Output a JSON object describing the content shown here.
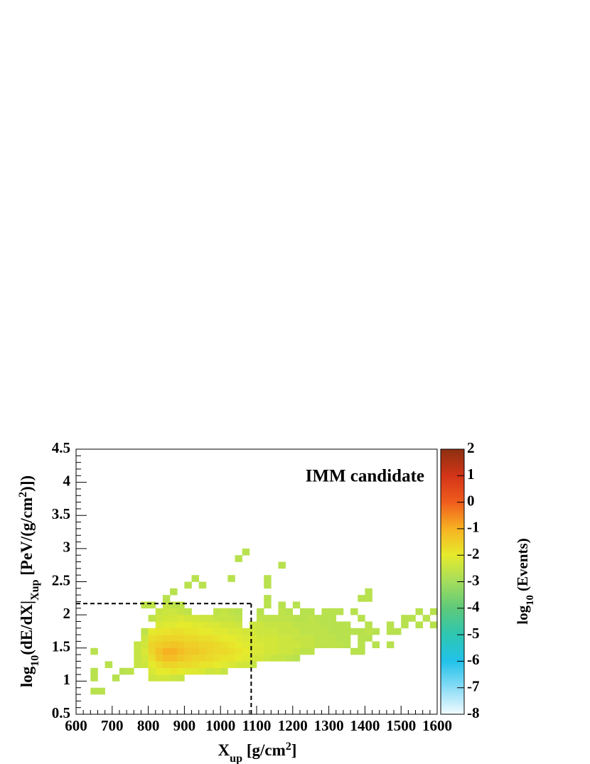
{
  "chart_data": {
    "type": "heatmap",
    "annotation": "IMM candidate",
    "xlabel": [
      {
        "text": "X"
      },
      {
        "text": "up",
        "shift": "sub"
      },
      {
        "text": " [g/cm"
      },
      {
        "text": "2",
        "shift": "super"
      },
      {
        "text": "]"
      }
    ],
    "ylabel": [
      {
        "text": "log"
      },
      {
        "text": "10",
        "shift": "sub"
      },
      {
        "text": "(dE/dX|"
      },
      {
        "text": "Xup",
        "shift": "sub"
      },
      {
        "text": " [PeV/(g/cm"
      },
      {
        "text": "2",
        "shift": "super"
      },
      {
        "text": ")])"
      }
    ],
    "zlabel": [
      {
        "text": "log"
      },
      {
        "text": "10",
        "shift": "sub"
      },
      {
        "text": " (Events)"
      }
    ],
    "xlim": [
      600,
      1600
    ],
    "xticks": [
      600,
      700,
      800,
      900,
      1000,
      1100,
      1200,
      1300,
      1400,
      1500,
      1600
    ],
    "ylim": [
      0.5,
      4.5
    ],
    "yticks": [
      0.5,
      1,
      1.5,
      2,
      2.5,
      3,
      3.5,
      4,
      4.5
    ],
    "zlim": [
      -8,
      2
    ],
    "zticks": [
      -8,
      -7,
      -6,
      -5,
      -4,
      -3,
      -2,
      -1,
      0,
      1,
      2
    ],
    "palette": [
      "#f2fbff",
      "#8adcf6",
      "#22c2ea",
      "#2ec6b2",
      "#5ec97a",
      "#a4dd5c",
      "#e6ea2c",
      "#f7b222",
      "#f05c1c",
      "#d33418",
      "#8c3010"
    ],
    "bin_width": [
      20,
      0.1
    ],
    "rows": [
      {
        "y": 0.8,
        "x": [
          640,
          660
        ],
        "z": [
          -2.7,
          -2.7
        ]
      },
      {
        "y": 1.0,
        "x": [
          640,
          700,
          800,
          820,
          840,
          860,
          880
        ],
        "z": [
          -2.7,
          -2.7,
          -2.4,
          -2.3,
          -2.3,
          -2.4,
          -2.5
        ]
      },
      {
        "y": 1.1,
        "x": [
          640,
          720,
          740,
          800,
          820,
          840,
          860,
          880,
          900,
          920,
          940,
          960,
          980,
          1000
        ],
        "z": [
          -2.7,
          -2.7,
          -2.6,
          -2.2,
          -2.0,
          -2.0,
          -1.9,
          -2.0,
          -2.1,
          -2.1,
          -2.2,
          -2.4,
          -2.3,
          -2.5
        ]
      },
      {
        "y": 1.2,
        "x": [
          680,
          760,
          780,
          800,
          820,
          840,
          860,
          880,
          900,
          920,
          940,
          960,
          980,
          1000,
          1020,
          1040,
          1060,
          1080
        ],
        "z": [
          -2.7,
          -2.5,
          -2.4,
          -2.0,
          -1.8,
          -1.6,
          -1.6,
          -1.7,
          -1.7,
          -1.8,
          -1.9,
          -1.9,
          -2.0,
          -2.1,
          -2.2,
          -2.3,
          -2.3,
          -2.5
        ]
      },
      {
        "y": 1.3,
        "x": [
          760,
          780,
          800,
          820,
          840,
          860,
          880,
          900,
          920,
          940,
          960,
          980,
          1000,
          1020,
          1040,
          1060,
          1080,
          1100,
          1120,
          1140,
          1160,
          1180,
          1200
        ],
        "z": [
          -2.5,
          -2.3,
          -1.8,
          -1.4,
          -1.2,
          -1.2,
          -1.4,
          -1.5,
          -1.6,
          -1.6,
          -1.7,
          -1.8,
          -1.9,
          -1.9,
          -2.0,
          -2.1,
          -2.3,
          -2.3,
          -2.4,
          -2.5,
          -2.5,
          -2.6,
          -2.7
        ]
      },
      {
        "y": 1.4,
        "x": [
          640,
          760,
          780,
          800,
          820,
          840,
          860,
          880,
          900,
          920,
          940,
          960,
          980,
          1000,
          1020,
          1040,
          1060,
          1080,
          1100,
          1120,
          1140,
          1160,
          1180,
          1200,
          1220,
          1240,
          1360,
          1380
        ],
        "z": [
          -2.7,
          -2.5,
          -2.2,
          -1.6,
          -1.3,
          -1.0,
          -1.0,
          -1.2,
          -1.4,
          -1.4,
          -1.5,
          -1.6,
          -1.7,
          -1.7,
          -1.8,
          -1.9,
          -2.0,
          -2.2,
          -2.2,
          -2.3,
          -2.3,
          -2.4,
          -2.4,
          -2.5,
          -2.6,
          -2.6,
          -2.7,
          -2.7
        ]
      },
      {
        "y": 1.5,
        "x": [
          760,
          780,
          800,
          820,
          840,
          860,
          880,
          900,
          920,
          940,
          960,
          980,
          1000,
          1020,
          1040,
          1060,
          1080,
          1100,
          1120,
          1140,
          1160,
          1180,
          1200,
          1220,
          1240,
          1260,
          1280,
          1300,
          1320,
          1340,
          1380,
          1420,
          1460
        ],
        "z": [
          -2.5,
          -2.3,
          -1.6,
          -1.5,
          -1.4,
          -1.3,
          -1.4,
          -1.5,
          -1.5,
          -1.6,
          -1.6,
          -1.7,
          -1.8,
          -1.9,
          -2.0,
          -2.1,
          -2.2,
          -2.2,
          -2.3,
          -2.3,
          -2.4,
          -2.4,
          -2.4,
          -2.5,
          -2.5,
          -2.6,
          -2.6,
          -2.6,
          -2.6,
          -2.7,
          -2.7,
          -2.7,
          -2.7
        ]
      },
      {
        "y": 1.6,
        "x": [
          780,
          800,
          820,
          840,
          860,
          880,
          900,
          920,
          940,
          960,
          980,
          1000,
          1020,
          1040,
          1060,
          1080,
          1100,
          1120,
          1140,
          1160,
          1180,
          1200,
          1220,
          1240,
          1260,
          1280,
          1300,
          1320,
          1340,
          1380,
          1400
        ],
        "z": [
          -2.4,
          -1.8,
          -1.7,
          -1.6,
          -1.6,
          -1.6,
          -1.7,
          -1.7,
          -1.8,
          -1.8,
          -1.9,
          -2.0,
          -2.0,
          -2.1,
          -2.2,
          -2.2,
          -2.3,
          -2.3,
          -2.3,
          -2.4,
          -2.4,
          -2.5,
          -2.5,
          -2.5,
          -2.6,
          -2.6,
          -2.6,
          -2.7,
          -2.7,
          -2.7,
          -2.7
        ]
      },
      {
        "y": 1.7,
        "x": [
          780,
          800,
          820,
          840,
          860,
          880,
          900,
          920,
          940,
          960,
          980,
          1000,
          1020,
          1040,
          1060,
          1080,
          1100,
          1120,
          1140,
          1160,
          1180,
          1200,
          1220,
          1240,
          1260,
          1280,
          1300,
          1320,
          1340,
          1360,
          1380,
          1400,
          1420,
          1460,
          1480
        ],
        "z": [
          -2.6,
          -2.0,
          -1.9,
          -1.9,
          -1.8,
          -1.8,
          -1.9,
          -1.9,
          -2.0,
          -2.0,
          -2.1,
          -2.1,
          -2.2,
          -2.2,
          -2.3,
          -2.3,
          -2.4,
          -2.4,
          -2.4,
          -2.5,
          -2.5,
          -2.5,
          -2.6,
          -2.6,
          -2.6,
          -2.6,
          -2.7,
          -2.7,
          -2.7,
          -2.7,
          -2.7,
          -2.6,
          -2.7,
          -2.7,
          -2.7
        ]
      },
      {
        "y": 1.8,
        "x": [
          820,
          840,
          860,
          880,
          900,
          920,
          940,
          960,
          980,
          1000,
          1020,
          1040,
          1080,
          1100,
          1120,
          1140,
          1160,
          1180,
          1200,
          1220,
          1240,
          1260,
          1280,
          1300,
          1320,
          1340,
          1400,
          1460,
          1500,
          1540,
          1580
        ],
        "z": [
          -2.2,
          -2.1,
          -2.1,
          -2.0,
          -2.0,
          -2.1,
          -2.1,
          -2.2,
          -2.2,
          -2.3,
          -2.3,
          -2.4,
          -2.4,
          -2.4,
          -2.5,
          -2.5,
          -2.5,
          -2.5,
          -2.6,
          -2.6,
          -2.6,
          -2.6,
          -2.7,
          -2.7,
          -2.7,
          -2.7,
          -2.7,
          -2.7,
          -2.7,
          -2.7,
          -2.7
        ]
      },
      {
        "y": 1.9,
        "x": [
          800,
          820,
          840,
          860,
          880,
          900,
          920,
          940,
          960,
          980,
          1000,
          1020,
          1040,
          1100,
          1120,
          1140,
          1160,
          1180,
          1200,
          1220,
          1240,
          1260,
          1280,
          1300,
          1380,
          1500,
          1520,
          1560
        ],
        "z": [
          -2.6,
          -2.4,
          -2.3,
          -2.3,
          -2.2,
          -2.3,
          -2.3,
          -2.4,
          -2.4,
          -2.5,
          -2.5,
          -2.5,
          -2.6,
          -2.6,
          -2.6,
          -2.6,
          -2.6,
          -2.6,
          -2.7,
          -2.7,
          -2.6,
          -2.7,
          -2.7,
          -2.7,
          -2.7,
          -2.7,
          -2.7,
          -2.7
        ]
      },
      {
        "y": 2.0,
        "x": [
          820,
          840,
          860,
          880,
          900,
          980,
          1000,
          1020,
          1040,
          1100,
          1160,
          1180,
          1220,
          1240,
          1280,
          1300,
          1320,
          1360,
          1540,
          1580
        ],
        "z": [
          -2.5,
          -2.4,
          -2.4,
          -2.5,
          -2.6,
          -2.6,
          -2.5,
          -2.6,
          -2.7,
          -2.7,
          -2.6,
          -2.7,
          -2.7,
          -2.7,
          -2.7,
          -2.7,
          -2.7,
          -2.7,
          -2.7,
          -2.7
        ]
      },
      {
        "y": 2.1,
        "x": [
          780,
          800,
          840,
          860,
          880,
          1120,
          1160,
          1200
        ],
        "z": [
          -2.6,
          -2.6,
          -2.5,
          -2.6,
          -2.6,
          -2.7,
          -2.7,
          -2.7
        ]
      },
      {
        "y": 2.2,
        "x": [
          840,
          1120,
          1380,
          1400
        ],
        "z": [
          -2.7,
          -2.7,
          -2.7,
          -2.7
        ]
      },
      {
        "y": 2.3,
        "x": [
          860,
          1400
        ],
        "z": [
          -2.7,
          -2.7
        ]
      },
      {
        "y": 2.4,
        "x": [
          900,
          940,
          1120
        ],
        "z": [
          -2.7,
          -2.7,
          -2.7
        ]
      },
      {
        "y": 2.5,
        "x": [
          920,
          1020,
          1120
        ],
        "z": [
          -2.7,
          -2.7,
          -2.7
        ]
      },
      {
        "y": 2.7,
        "x": [
          1160
        ],
        "z": [
          -2.7
        ]
      },
      {
        "y": 2.8,
        "x": [
          1040
        ],
        "z": [
          -2.7
        ]
      },
      {
        "y": 2.9,
        "x": [
          1060
        ],
        "z": [
          -2.7
        ]
      }
    ],
    "lines": [
      {
        "x": [
          600,
          1085
        ],
        "y": [
          2.17,
          2.17
        ]
      },
      {
        "x": [
          1085,
          1085
        ],
        "y": [
          0.5,
          2.17
        ]
      }
    ],
    "line_color": "#000000"
  }
}
